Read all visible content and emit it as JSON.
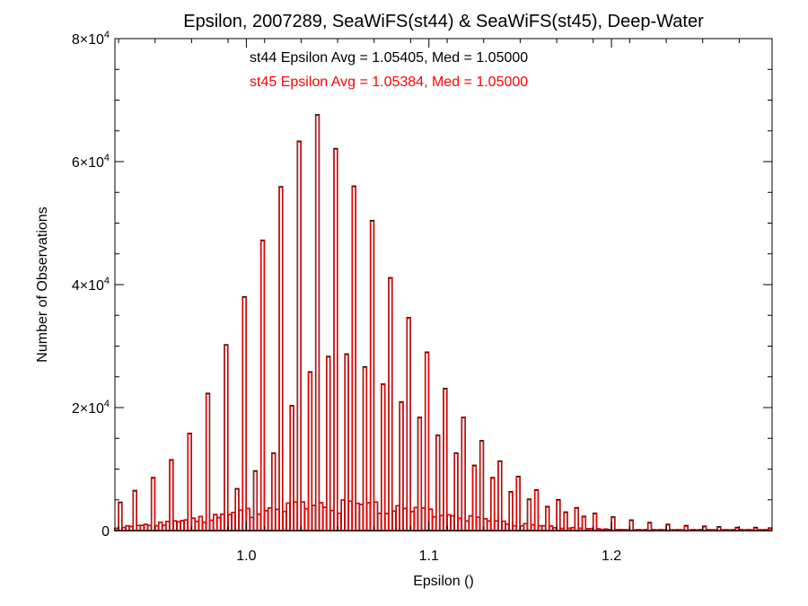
{
  "chart_data": {
    "type": "histogram",
    "title": "Epsilon, 2007289, SeaWiFS(st44) & SeaWiFS(st45), Deep-Water",
    "xlabel": "Epsilon ()",
    "ylabel": "Number of Observations",
    "xlim": [
      0.928,
      1.288
    ],
    "ylim": [
      0,
      80000
    ],
    "x_ticks": [
      {
        "value": 1.0,
        "label": "1.0"
      },
      {
        "value": 1.1,
        "label": "1.1"
      },
      {
        "value": 1.2,
        "label": "1.2"
      }
    ],
    "y_ticks": [
      {
        "value": 0,
        "label": "0"
      },
      {
        "value": 20000,
        "mant": "2",
        "exp": "4"
      },
      {
        "value": 40000,
        "mant": "4",
        "exp": "4"
      },
      {
        "value": 60000,
        "mant": "6",
        "exp": "4"
      },
      {
        "value": 80000,
        "mant": "8",
        "exp": "4"
      }
    ],
    "annotations": [
      {
        "text": "st44 Epsilon Avg = 1.05405, Med = 1.05000",
        "color": "#000000"
      },
      {
        "text": "st45 Epsilon Avg = 1.05384, Med = 1.05000",
        "color": "#ff0000"
      }
    ],
    "series": [
      {
        "color": "#000000",
        "bin_width": 0.002,
        "peaks": [
          [
            0.929,
            4600
          ],
          [
            0.939,
            6500
          ],
          [
            0.949,
            8600
          ],
          [
            0.959,
            11500
          ],
          [
            0.969,
            15800
          ],
          [
            0.979,
            22300
          ],
          [
            0.989,
            30200
          ],
          [
            0.999,
            38000
          ],
          [
            1.009,
            47200
          ],
          [
            1.019,
            55900
          ],
          [
            1.029,
            63300
          ],
          [
            1.039,
            67600
          ],
          [
            1.049,
            62100
          ],
          [
            1.059,
            56000
          ],
          [
            1.069,
            50400
          ],
          [
            1.079,
            41100
          ],
          [
            1.089,
            34600
          ],
          [
            1.099,
            29000
          ],
          [
            1.109,
            23100
          ],
          [
            1.119,
            18400
          ],
          [
            1.129,
            14600
          ],
          [
            1.139,
            11300
          ],
          [
            1.149,
            8800
          ],
          [
            1.159,
            6600
          ],
          [
            1.169,
            5000
          ],
          [
            1.179,
            3700
          ],
          [
            1.189,
            2800
          ],
          [
            1.199,
            2200
          ],
          [
            1.209,
            1700
          ],
          [
            1.219,
            1300
          ],
          [
            1.229,
            1000
          ],
          [
            1.239,
            800
          ],
          [
            1.249,
            700
          ],
          [
            1.259,
            600
          ],
          [
            1.269,
            500
          ],
          [
            1.279,
            500
          ],
          [
            1.287,
            400
          ]
        ],
        "mid_peaks": [
          [
            0.989,
            6800
          ],
          [
            0.999,
            9700
          ],
          [
            1.009,
            12600
          ],
          [
            1.019,
            20300
          ],
          [
            1.029,
            25800
          ],
          [
            1.039,
            28300
          ],
          [
            1.049,
            28700
          ],
          [
            1.059,
            26600
          ],
          [
            1.069,
            23800
          ],
          [
            1.079,
            20900
          ],
          [
            1.089,
            18400
          ],
          [
            1.099,
            15500
          ],
          [
            1.109,
            12600
          ],
          [
            1.119,
            10600
          ],
          [
            1.129,
            8600
          ],
          [
            1.139,
            6300
          ],
          [
            1.149,
            5100
          ],
          [
            1.159,
            3900
          ],
          [
            1.169,
            3000
          ],
          [
            1.179,
            2300
          ]
        ]
      },
      {
        "color": "#ff0000",
        "bin_width": 0.002,
        "peaks": [
          [
            0.929,
            4500
          ],
          [
            0.939,
            6400
          ],
          [
            0.949,
            8500
          ],
          [
            0.959,
            11400
          ],
          [
            0.969,
            15700
          ],
          [
            0.979,
            22200
          ],
          [
            0.989,
            30100
          ],
          [
            0.999,
            37900
          ],
          [
            1.009,
            47100
          ],
          [
            1.019,
            55800
          ],
          [
            1.029,
            63200
          ],
          [
            1.039,
            67500
          ],
          [
            1.049,
            62000
          ],
          [
            1.059,
            55900
          ],
          [
            1.069,
            50300
          ],
          [
            1.079,
            41000
          ],
          [
            1.089,
            34500
          ],
          [
            1.099,
            28900
          ],
          [
            1.109,
            23000
          ],
          [
            1.119,
            18300
          ],
          [
            1.129,
            14500
          ],
          [
            1.139,
            11200
          ],
          [
            1.149,
            8700
          ],
          [
            1.159,
            6500
          ],
          [
            1.169,
            4900
          ],
          [
            1.179,
            3600
          ],
          [
            1.189,
            2700
          ],
          [
            1.199,
            2100
          ],
          [
            1.209,
            1600
          ],
          [
            1.219,
            1200
          ],
          [
            1.229,
            900
          ],
          [
            1.239,
            700
          ],
          [
            1.249,
            600
          ],
          [
            1.259,
            500
          ],
          [
            1.269,
            400
          ],
          [
            1.279,
            400
          ],
          [
            1.287,
            300
          ]
        ],
        "mid_peaks": [
          [
            0.989,
            6700
          ],
          [
            0.999,
            9600
          ],
          [
            1.009,
            12500
          ],
          [
            1.019,
            20200
          ],
          [
            1.029,
            25700
          ],
          [
            1.039,
            28200
          ],
          [
            1.049,
            28600
          ],
          [
            1.059,
            26500
          ],
          [
            1.069,
            23700
          ],
          [
            1.079,
            20800
          ],
          [
            1.089,
            18300
          ],
          [
            1.099,
            15400
          ],
          [
            1.109,
            12500
          ],
          [
            1.119,
            10500
          ],
          [
            1.129,
            8500
          ],
          [
            1.139,
            6200
          ],
          [
            1.149,
            5000
          ],
          [
            1.159,
            3800
          ],
          [
            1.169,
            2900
          ],
          [
            1.179,
            2200
          ]
        ]
      }
    ]
  }
}
